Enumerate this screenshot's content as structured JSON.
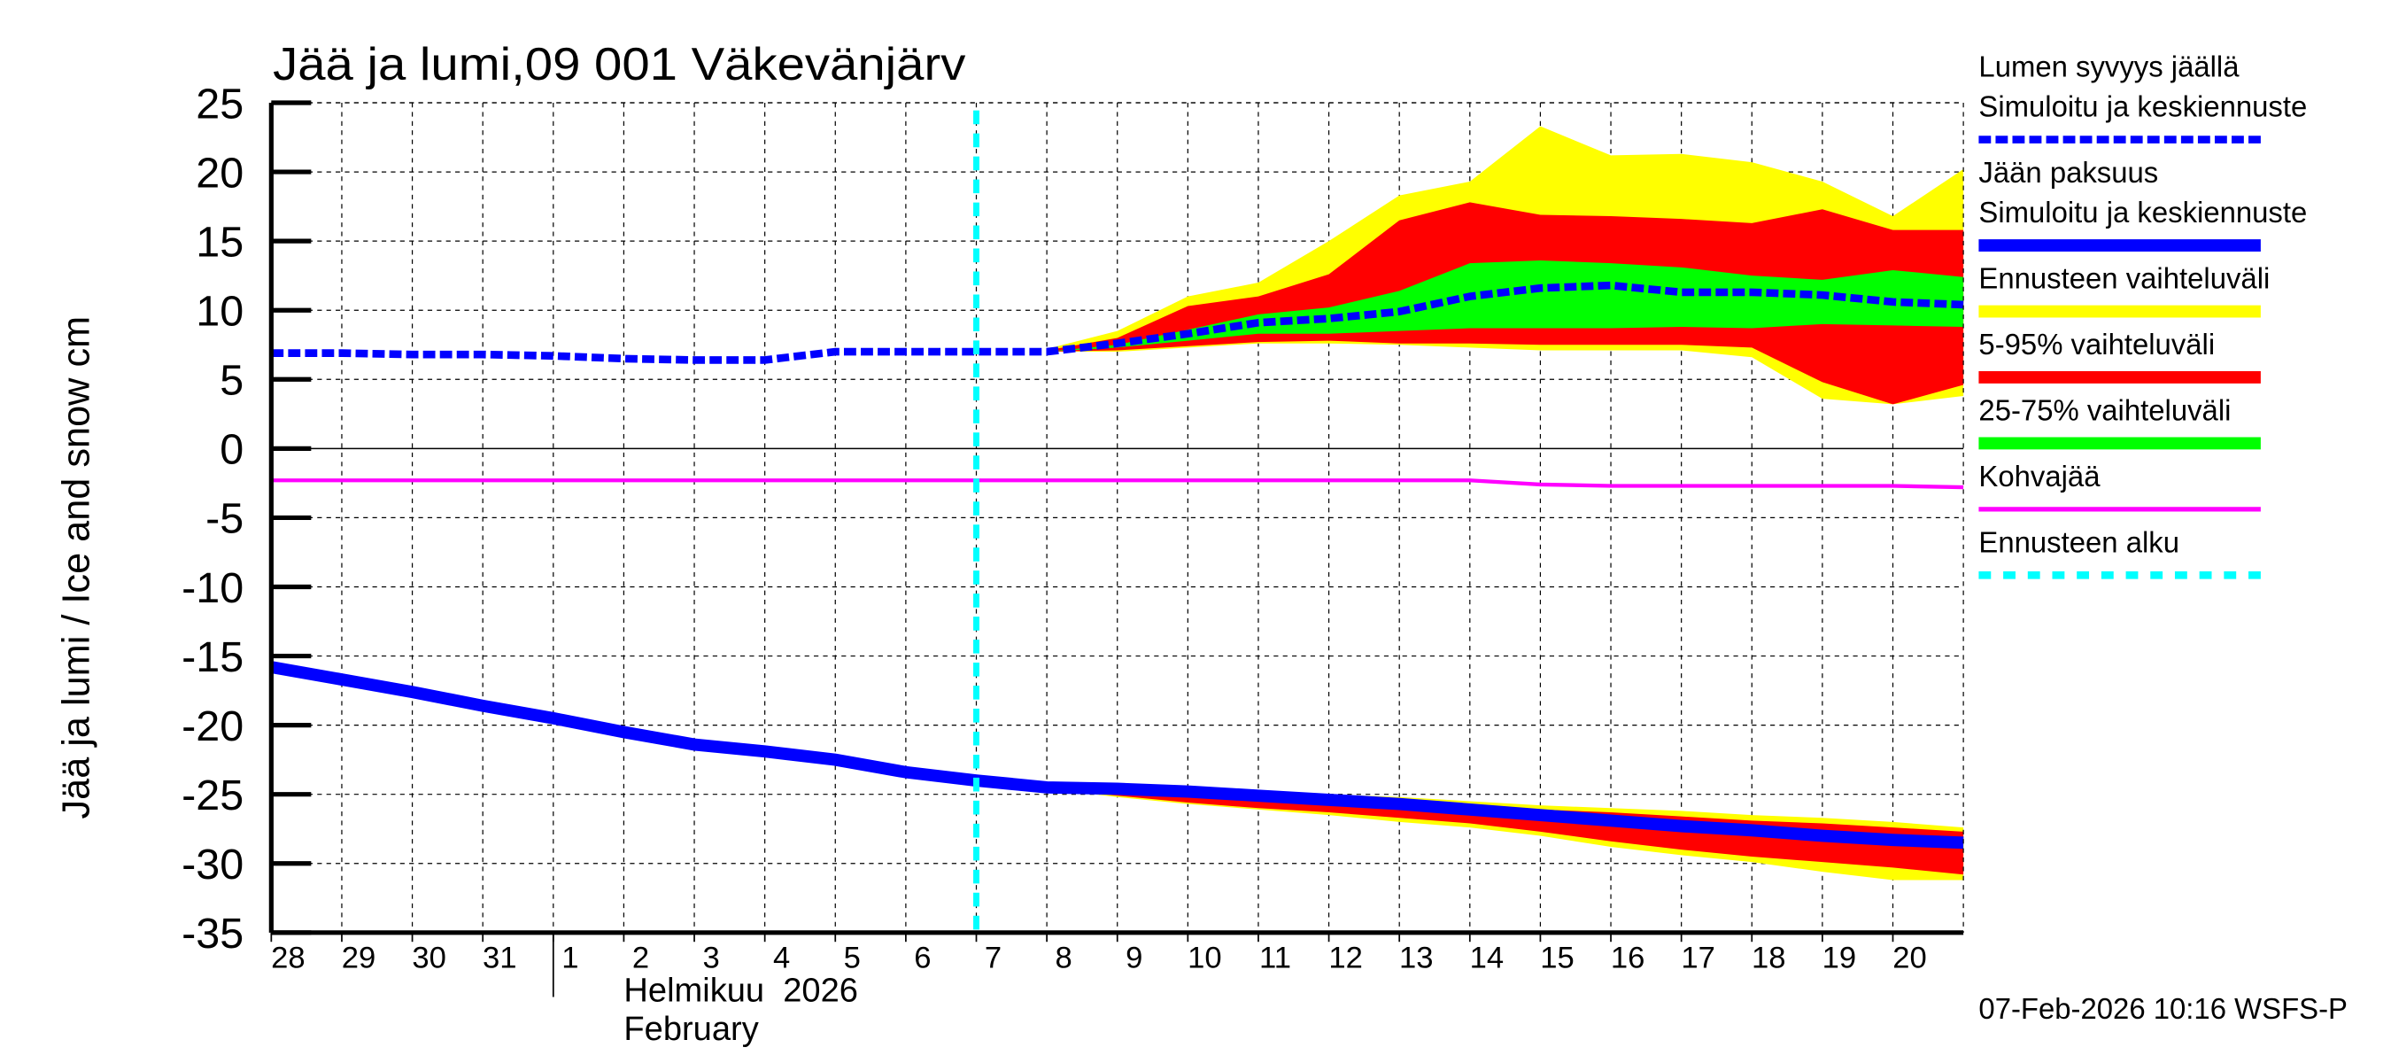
{
  "chart_data": {
    "type": "area",
    "title": "Jää ja lumi,09 001 Väkevänjärv",
    "ylabel": "Jää ja lumi / Ice and snow    cm",
    "ylim": [
      -35,
      25
    ],
    "yticks": [
      25,
      20,
      15,
      10,
      5,
      0,
      -5,
      -10,
      -15,
      -20,
      -25,
      -30,
      -35
    ],
    "xlim": [
      "2026-01-28",
      "2026-02-21"
    ],
    "xtick_labels": [
      "28",
      "29",
      "30",
      "31",
      "1",
      "2",
      "3",
      "4",
      "5",
      "6",
      "7",
      "8",
      "9",
      "10",
      "11",
      "12",
      "13",
      "14",
      "15",
      "16",
      "17",
      "18",
      "19",
      "20"
    ],
    "month_label": "Helmikuu  2026",
    "month_label_en": "February",
    "grid": true,
    "legend_placement": "right",
    "forecast_start": "2026-02-07",
    "footer": "07-Feb-2026 10:16 WSFS-P",
    "dates": [
      "2026-01-28",
      "2026-01-29",
      "2026-01-30",
      "2026-01-31",
      "2026-02-01",
      "2026-02-02",
      "2026-02-03",
      "2026-02-04",
      "2026-02-05",
      "2026-02-06",
      "2026-02-07",
      "2026-02-08",
      "2026-02-09",
      "2026-02-10",
      "2026-02-11",
      "2026-02-12",
      "2026-02-13",
      "2026-02-14",
      "2026-02-15",
      "2026-02-16",
      "2026-02-17",
      "2026-02-18",
      "2026-02-19",
      "2026-02-20",
      "2026-02-21"
    ],
    "forecast_dates": [
      "2026-02-08",
      "2026-02-09",
      "2026-02-10",
      "2026-02-11",
      "2026-02-12",
      "2026-02-13",
      "2026-02-14",
      "2026-02-15",
      "2026-02-16",
      "2026-02-17",
      "2026-02-18",
      "2026-02-19",
      "2026-02-20",
      "2026-02-21"
    ],
    "snow": {
      "median": [
        6.9,
        6.9,
        6.8,
        6.8,
        6.7,
        6.5,
        6.4,
        6.4,
        7.0,
        7.0,
        7.0,
        7.0,
        7.6,
        8.3,
        9.1,
        9.4,
        9.9,
        11.0,
        11.6,
        11.8,
        11.3,
        11.3,
        11.1,
        10.6,
        10.4
      ],
      "range_upper": [
        7.2,
        8.5,
        11.0,
        12.0,
        15.0,
        18.3,
        19.3,
        23.3,
        21.2,
        21.3,
        20.7,
        19.3,
        16.8,
        20.2
      ],
      "range_lower": [
        7.0,
        7.0,
        7.3,
        7.6,
        7.6,
        7.5,
        7.3,
        7.1,
        7.1,
        7.1,
        6.6,
        3.6,
        3.2,
        3.8
      ],
      "p95": [
        7.1,
        8.0,
        10.3,
        11.0,
        12.6,
        16.5,
        17.8,
        16.9,
        16.8,
        16.6,
        16.3,
        17.3,
        15.8,
        15.8
      ],
      "p5": [
        7.0,
        7.1,
        7.4,
        7.7,
        7.8,
        7.6,
        7.6,
        7.5,
        7.5,
        7.5,
        7.3,
        4.8,
        3.2,
        4.6
      ],
      "p75": [
        7.0,
        7.5,
        8.6,
        9.7,
        10.2,
        11.4,
        13.4,
        13.6,
        13.4,
        13.1,
        12.5,
        12.2,
        12.9,
        12.4
      ],
      "p25": [
        7.0,
        7.3,
        7.8,
        8.3,
        8.3,
        8.5,
        8.7,
        8.7,
        8.7,
        8.8,
        8.7,
        9.0,
        8.9,
        8.8
      ]
    },
    "ice": {
      "median": [
        -15.8,
        -16.7,
        -17.6,
        -18.6,
        -19.5,
        -20.5,
        -21.4,
        -21.9,
        -22.5,
        -23.4,
        -24.0,
        -24.5,
        -24.6,
        -24.8,
        -25.1,
        -25.4,
        -25.7,
        -26.1,
        -26.5,
        -26.9,
        -27.3,
        -27.6,
        -28.0,
        -28.3,
        -28.5
      ],
      "range_upper": [
        -24.4,
        -24.5,
        -24.6,
        -24.8,
        -25.0,
        -25.2,
        -25.5,
        -25.8,
        -26.0,
        -26.2,
        -26.5,
        -26.7,
        -27.0,
        -27.4
      ],
      "range_lower": [
        -24.6,
        -25.2,
        -25.7,
        -26.1,
        -26.5,
        -27.0,
        -27.4,
        -28.0,
        -28.8,
        -29.4,
        -29.9,
        -30.6,
        -31.2,
        -31.2
      ],
      "p95": [
        -24.5,
        -24.6,
        -24.8,
        -25.0,
        -25.2,
        -25.5,
        -25.8,
        -26.1,
        -26.3,
        -26.6,
        -26.9,
        -27.1,
        -27.4,
        -27.7
      ],
      "p5": [
        -24.6,
        -25.1,
        -25.6,
        -26.0,
        -26.3,
        -26.7,
        -27.1,
        -27.7,
        -28.4,
        -29.0,
        -29.5,
        -29.9,
        -30.3,
        -30.8
      ],
      "p75": [
        -24.5,
        -24.4,
        -24.6,
        -24.8,
        -25.1,
        -25.4,
        -25.8,
        -26.2,
        -26.6,
        -27.0,
        -27.3,
        -27.7,
        -28.0,
        -28.2
      ],
      "p25": [
        -24.5,
        -24.8,
        -25.1,
        -25.4,
        -25.8,
        -26.1,
        -26.5,
        -26.9,
        -27.3,
        -27.7,
        -28.0,
        -28.4,
        -28.7,
        -28.9
      ]
    },
    "kohvajaa": [
      -2.3,
      -2.3,
      -2.3,
      -2.3,
      -2.3,
      -2.3,
      -2.3,
      -2.3,
      -2.3,
      -2.3,
      -2.3,
      -2.3,
      -2.3,
      -2.3,
      -2.3,
      -2.3,
      -2.3,
      -2.3,
      -2.6,
      -2.7,
      -2.7,
      -2.7,
      -2.7,
      -2.7,
      -2.8
    ],
    "legend": [
      {
        "label": "Lumen syvyys jäällä",
        "label2": "Simuloitu ja keskiennuste",
        "style": "dashed-thick",
        "color": "#0000ff"
      },
      {
        "label": "Jään paksuus",
        "label2": "Simuloitu ja keskiennuste",
        "style": "solid-thick",
        "color": "#0000ff"
      },
      {
        "label": "Ennusteen vaihteluväli",
        "style": "band",
        "color": "#ffff00"
      },
      {
        "label": "5-95% vaihteluväli",
        "style": "band",
        "color": "#ff0000"
      },
      {
        "label": "25-75% vaihteluväli",
        "style": "band",
        "color": "#00ff00"
      },
      {
        "label": "Kohvajää",
        "style": "line",
        "color": "#ff00ff"
      },
      {
        "label": "Ennusteen alku",
        "style": "dashed",
        "color": "#00ffff"
      }
    ]
  }
}
